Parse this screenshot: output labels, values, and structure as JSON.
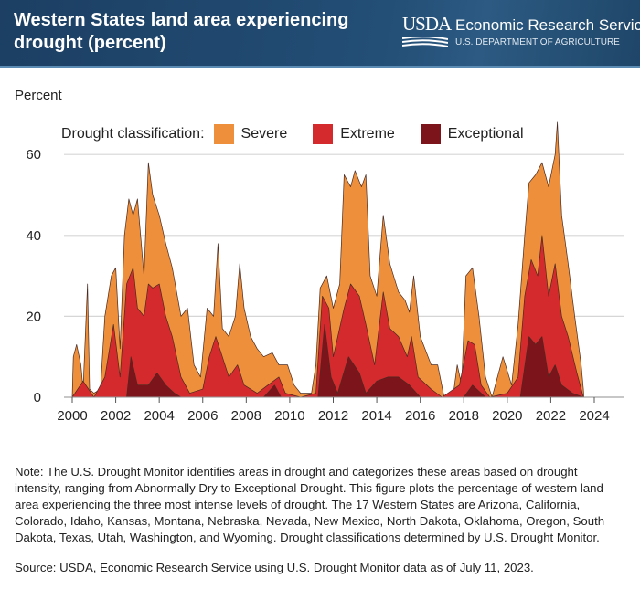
{
  "header": {
    "title": "Western States land area experiencing drought (percent)",
    "logo_mark": "USDA",
    "agency": "Economic Research Service",
    "department": "U.S. DEPARTMENT OF AGRICULTURE"
  },
  "note": "Note: The U.S. Drought Monitor identifies areas in drought and categorizes these areas based on drought intensity, ranging from Abnormally Dry to Exceptional Drought. This figure plots the percentage of western land area experiencing the three most intense levels of drought. The 17 Western States are Arizona, California, Colorado, Idaho, Kansas, Montana, Nebraska, Nevada, New Mexico, North Dakota, Oklahoma, Oregon, South Dakota, Texas, Utah, Washington, and Wyoming. Drought classifications determined by U.S. Drought Monitor.",
  "source": "Source: USDA, Economic Research Service using U.S. Drought Monitor data as of July 11, 2023.",
  "chart_data": {
    "type": "area",
    "stacking": "cumulative",
    "ylabel": "Percent",
    "legend_title": "Drought classification:",
    "legend_position": "top",
    "xlim": [
      2000,
      2024
    ],
    "ylim": [
      0,
      70
    ],
    "xticks": [
      "2000",
      "2002",
      "2004",
      "2006",
      "2008",
      "2010",
      "2012",
      "2014",
      "2016",
      "2018",
      "2020",
      "2022",
      "2024"
    ],
    "yticks": [
      "0",
      "20",
      "40",
      "60"
    ],
    "grid": "horizontal",
    "series": [
      {
        "name": "Severe",
        "color": "#ee8f3c",
        "points": [
          [
            2000,
            0
          ],
          [
            2000.05,
            10
          ],
          [
            2000.2,
            13
          ],
          [
            2000.4,
            8
          ],
          [
            2000.5,
            2
          ],
          [
            2000.7,
            28
          ],
          [
            2000.8,
            2
          ],
          [
            2001,
            1
          ],
          [
            2001.3,
            2
          ],
          [
            2001.5,
            20
          ],
          [
            2001.8,
            30
          ],
          [
            2002,
            32
          ],
          [
            2002.2,
            12
          ],
          [
            2002.4,
            40
          ],
          [
            2002.6,
            49
          ],
          [
            2002.8,
            45
          ],
          [
            2003,
            49
          ],
          [
            2003.3,
            30
          ],
          [
            2003.5,
            58
          ],
          [
            2003.7,
            50
          ],
          [
            2004,
            45
          ],
          [
            2004.3,
            38
          ],
          [
            2004.6,
            32
          ],
          [
            2005,
            20
          ],
          [
            2005.3,
            22
          ],
          [
            2005.6,
            8
          ],
          [
            2005.9,
            5
          ],
          [
            2006.2,
            22
          ],
          [
            2006.5,
            20
          ],
          [
            2006.7,
            38
          ],
          [
            2006.9,
            17
          ],
          [
            2007.2,
            15
          ],
          [
            2007.5,
            20
          ],
          [
            2007.7,
            33
          ],
          [
            2007.9,
            22
          ],
          [
            2008.2,
            15
          ],
          [
            2008.5,
            12
          ],
          [
            2008.8,
            10
          ],
          [
            2009.2,
            11
          ],
          [
            2009.5,
            8
          ],
          [
            2009.9,
            8
          ],
          [
            2010.2,
            3
          ],
          [
            2010.5,
            1
          ],
          [
            2011,
            1
          ],
          [
            2011.2,
            8
          ],
          [
            2011.4,
            27
          ],
          [
            2011.7,
            30
          ],
          [
            2012,
            22
          ],
          [
            2012.3,
            28
          ],
          [
            2012.5,
            55
          ],
          [
            2012.8,
            52
          ],
          [
            2013,
            56
          ],
          [
            2013.3,
            52
          ],
          [
            2013.5,
            55
          ],
          [
            2013.7,
            30
          ],
          [
            2014,
            25
          ],
          [
            2014.3,
            45
          ],
          [
            2014.6,
            33
          ],
          [
            2015,
            26
          ],
          [
            2015.3,
            24
          ],
          [
            2015.5,
            21
          ],
          [
            2015.7,
            30
          ],
          [
            2016,
            15
          ],
          [
            2016.5,
            8
          ],
          [
            2016.8,
            8
          ],
          [
            2017.1,
            0
          ],
          [
            2017.5,
            0
          ],
          [
            2017.7,
            8
          ],
          [
            2017.9,
            3
          ],
          [
            2018.1,
            30
          ],
          [
            2018.4,
            32
          ],
          [
            2018.7,
            20
          ],
          [
            2019,
            5
          ],
          [
            2019.3,
            0
          ],
          [
            2019.8,
            10
          ],
          [
            2020.2,
            3
          ],
          [
            2020.5,
            18
          ],
          [
            2020.8,
            40
          ],
          [
            2021,
            53
          ],
          [
            2021.3,
            55
          ],
          [
            2021.6,
            58
          ],
          [
            2021.9,
            52
          ],
          [
            2022.2,
            60
          ],
          [
            2022.3,
            68
          ],
          [
            2022.5,
            45
          ],
          [
            2022.8,
            33
          ],
          [
            2023.1,
            20
          ],
          [
            2023.4,
            8
          ],
          [
            2023.5,
            2
          ],
          [
            2023.52,
            0
          ]
        ]
      },
      {
        "name": "Extreme",
        "color": "#d42a2e",
        "points": [
          [
            2000,
            0
          ],
          [
            2000.5,
            4
          ],
          [
            2001,
            0
          ],
          [
            2001.5,
            5
          ],
          [
            2001.9,
            18
          ],
          [
            2002.2,
            5
          ],
          [
            2002.5,
            28
          ],
          [
            2002.8,
            32
          ],
          [
            2003,
            22
          ],
          [
            2003.3,
            20
          ],
          [
            2003.5,
            28
          ],
          [
            2003.7,
            27
          ],
          [
            2004,
            28
          ],
          [
            2004.3,
            20
          ],
          [
            2004.6,
            15
          ],
          [
            2005,
            5
          ],
          [
            2005.4,
            1
          ],
          [
            2006,
            2
          ],
          [
            2006.3,
            10
          ],
          [
            2006.6,
            15
          ],
          [
            2006.9,
            10
          ],
          [
            2007.2,
            5
          ],
          [
            2007.6,
            8
          ],
          [
            2007.9,
            3
          ],
          [
            2008.5,
            1
          ],
          [
            2009,
            3
          ],
          [
            2009.5,
            5
          ],
          [
            2009.8,
            1
          ],
          [
            2010.5,
            0
          ],
          [
            2011.2,
            1
          ],
          [
            2011.5,
            25
          ],
          [
            2011.8,
            22
          ],
          [
            2012,
            10
          ],
          [
            2012.5,
            22
          ],
          [
            2012.8,
            28
          ],
          [
            2013.2,
            25
          ],
          [
            2013.5,
            18
          ],
          [
            2013.9,
            8
          ],
          [
            2014.3,
            26
          ],
          [
            2014.6,
            17
          ],
          [
            2015,
            15
          ],
          [
            2015.4,
            10
          ],
          [
            2015.6,
            15
          ],
          [
            2015.9,
            5
          ],
          [
            2016.5,
            2
          ],
          [
            2017,
            0
          ],
          [
            2017.8,
            3
          ],
          [
            2018.2,
            14
          ],
          [
            2018.5,
            13
          ],
          [
            2018.8,
            3
          ],
          [
            2019.2,
            0
          ],
          [
            2020,
            1
          ],
          [
            2020.5,
            5
          ],
          [
            2020.8,
            25
          ],
          [
            2021.1,
            34
          ],
          [
            2021.4,
            30
          ],
          [
            2021.6,
            40
          ],
          [
            2021.9,
            25
          ],
          [
            2022.2,
            33
          ],
          [
            2022.5,
            20
          ],
          [
            2022.8,
            15
          ],
          [
            2023.2,
            6
          ],
          [
            2023.5,
            0
          ]
        ]
      },
      {
        "name": "Exceptional",
        "color": "#7b151b",
        "points": [
          [
            2002.5,
            0
          ],
          [
            2002.7,
            10
          ],
          [
            2003,
            3
          ],
          [
            2003.5,
            3
          ],
          [
            2003.9,
            6
          ],
          [
            2004.3,
            3
          ],
          [
            2004.7,
            1
          ],
          [
            2005,
            0
          ],
          [
            2008.8,
            0
          ],
          [
            2009.3,
            3
          ],
          [
            2009.6,
            0
          ],
          [
            2011.3,
            0
          ],
          [
            2011.6,
            18
          ],
          [
            2011.9,
            5
          ],
          [
            2012.2,
            1
          ],
          [
            2012.7,
            10
          ],
          [
            2013.2,
            6
          ],
          [
            2013.5,
            1
          ],
          [
            2014,
            4
          ],
          [
            2014.5,
            5
          ],
          [
            2015,
            5
          ],
          [
            2015.5,
            3
          ],
          [
            2016,
            0
          ],
          [
            2018,
            0
          ],
          [
            2018.4,
            3
          ],
          [
            2018.8,
            1
          ],
          [
            2019,
            0
          ],
          [
            2020.6,
            0
          ],
          [
            2021,
            15
          ],
          [
            2021.3,
            13
          ],
          [
            2021.6,
            15
          ],
          [
            2021.9,
            5
          ],
          [
            2022.2,
            8
          ],
          [
            2022.5,
            3
          ],
          [
            2023,
            1
          ],
          [
            2023.5,
            0
          ]
        ]
      }
    ]
  }
}
